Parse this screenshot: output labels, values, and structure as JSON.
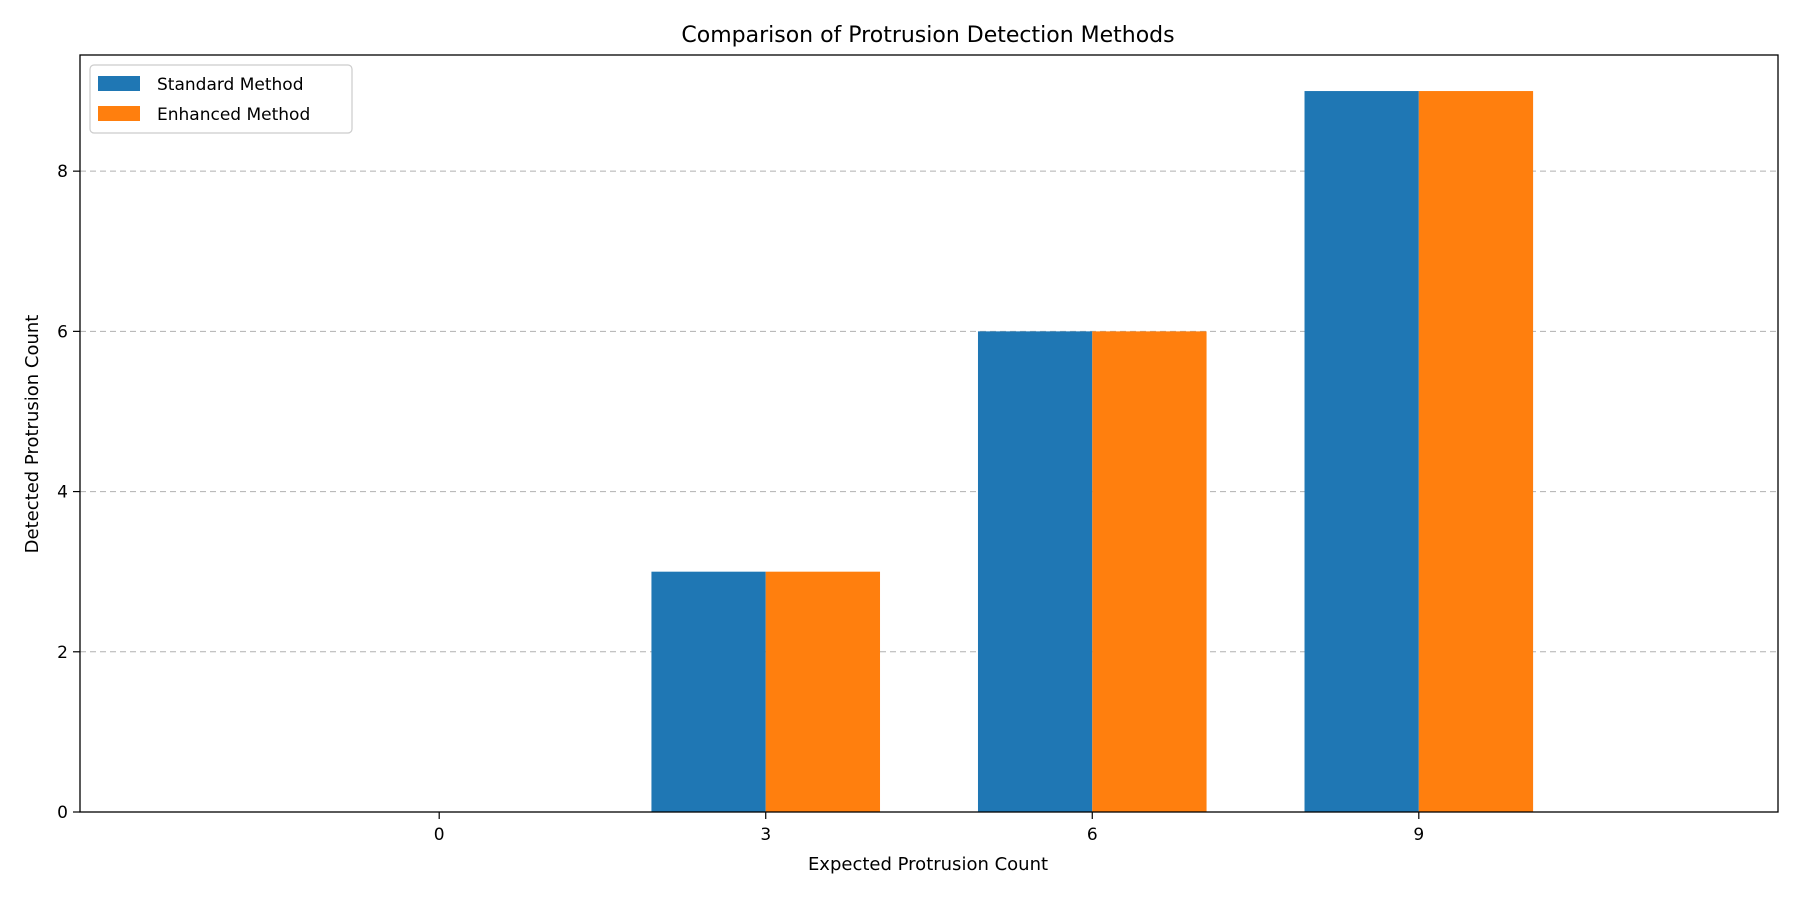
{
  "chart_data": {
    "type": "bar",
    "title": "Comparison of Protrusion Detection Methods",
    "xlabel": "Expected Protrusion Count",
    "ylabel": "Detected Protrusion Count",
    "categories": [
      "0",
      "3",
      "6",
      "9"
    ],
    "series": [
      {
        "name": "Standard Method",
        "color": "#1f77b4",
        "values": [
          0,
          3,
          6,
          9
        ]
      },
      {
        "name": "Enhanced Method",
        "color": "#ff7f0e",
        "values": [
          0,
          3,
          6,
          9
        ]
      }
    ],
    "ylim": [
      0,
      9.45
    ],
    "yticks": [
      "0",
      "2",
      "4",
      "6",
      "8"
    ],
    "grid": "y-dashed",
    "legend": "top-left"
  }
}
